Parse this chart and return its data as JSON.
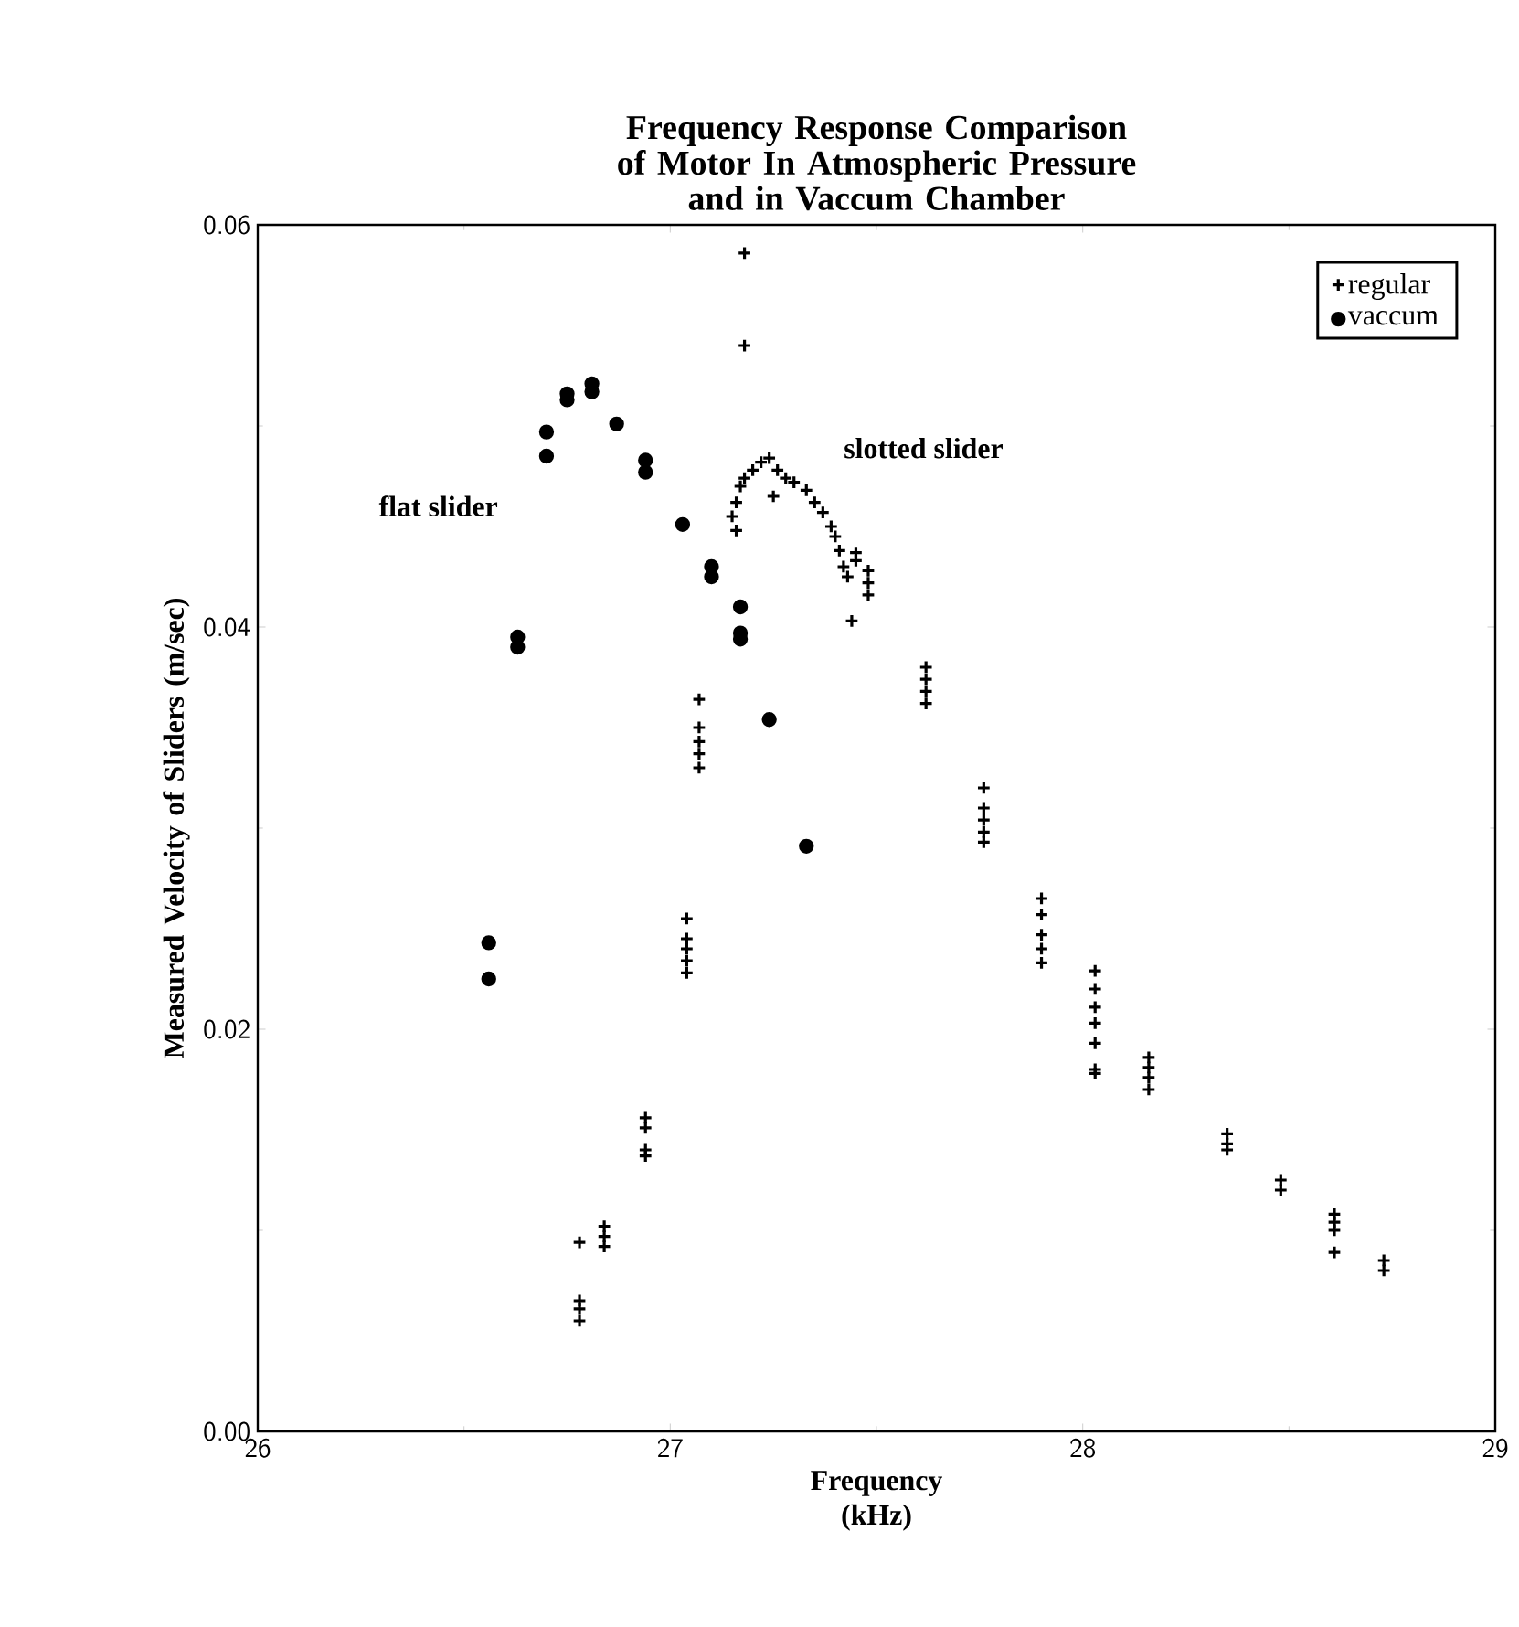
{
  "chart_data": {
    "type": "scatter",
    "title": "Frequency Response Comparison of Motor In Atmospheric Pressure and in Vaccum Chamber",
    "xlabel": "Frequency (kHz)",
    "ylabel": "Measured Velocity of Sliders (m/sec)",
    "xlim": [
      26,
      29
    ],
    "ylim": [
      0,
      0.06
    ],
    "xticks": [
      26,
      27,
      28,
      29
    ],
    "yticks": [
      {
        "value": 0,
        "label": "0.00"
      },
      {
        "value": 0.02,
        "label": "0.02"
      },
      {
        "value": 0.04,
        "label": "0.04"
      },
      {
        "value": 0.06,
        "label": "0.06"
      }
    ],
    "legend": "top right",
    "grid": false,
    "annotations": [
      "flat slider",
      "slotted slider"
    ],
    "series": [
      {
        "name": "regular",
        "color": "#000000",
        "marker": "cross",
        "x": [
          26.78,
          26.78,
          26.78,
          26.78,
          26.84,
          26.84,
          26.84,
          26.94,
          26.94,
          26.94,
          26.94,
          27.04,
          27.04,
          27.04,
          27.04,
          27.04,
          27.07,
          27.07,
          27.07,
          27.07,
          27.07,
          27.18,
          27.18,
          27.15,
          27.16,
          27.17,
          27.18,
          27.2,
          27.22,
          27.24,
          27.26,
          27.28,
          27.3,
          27.33,
          27.35,
          27.37,
          27.39,
          27.4,
          27.41,
          27.42,
          27.43,
          27.16,
          27.25,
          27.44,
          27.48,
          27.48,
          27.48,
          27.45,
          27.45,
          27.62,
          27.62,
          27.62,
          27.62,
          27.76,
          27.76,
          27.76,
          27.76,
          27.76,
          27.9,
          27.9,
          27.9,
          27.9,
          27.9,
          28.03,
          28.03,
          28.03,
          28.03,
          28.03,
          28.03,
          28.03,
          28.16,
          28.16,
          28.16,
          28.16,
          28.35,
          28.35,
          28.35,
          28.48,
          28.48,
          28.61,
          28.61,
          28.61,
          28.61,
          28.73,
          28.73
        ],
        "values": [
          0.0094,
          0.0065,
          0.0061,
          0.0055,
          0.0102,
          0.0097,
          0.0092,
          0.0156,
          0.0151,
          0.014,
          0.0137,
          0.0255,
          0.0245,
          0.024,
          0.0234,
          0.0228,
          0.0364,
          0.035,
          0.0343,
          0.0337,
          0.033,
          0.0586,
          0.054,
          0.0455,
          0.0462,
          0.047,
          0.0474,
          0.0478,
          0.0482,
          0.0484,
          0.0478,
          0.0474,
          0.0472,
          0.0468,
          0.0462,
          0.0457,
          0.045,
          0.0445,
          0.0438,
          0.043,
          0.0425,
          0.0448,
          0.0465,
          0.0403,
          0.0428,
          0.0422,
          0.0416,
          0.0437,
          0.0433,
          0.038,
          0.0374,
          0.0368,
          0.0362,
          0.032,
          0.031,
          0.0304,
          0.0298,
          0.0293,
          0.0265,
          0.0257,
          0.0247,
          0.024,
          0.0233,
          0.0229,
          0.022,
          0.0211,
          0.0203,
          0.0193,
          0.018,
          0.0178,
          0.0186,
          0.0181,
          0.0176,
          0.017,
          0.0148,
          0.0143,
          0.014,
          0.0125,
          0.012,
          0.0108,
          0.0104,
          0.01,
          0.0089,
          0.0085,
          0.008
        ]
      },
      {
        "name": "vaccum",
        "color": "#000000",
        "marker": "circle",
        "x": [
          26.56,
          26.56,
          26.63,
          26.63,
          26.7,
          26.7,
          26.75,
          26.75,
          26.81,
          26.81,
          26.87,
          26.94,
          26.94,
          27.03,
          27.1,
          27.1,
          27.17,
          27.17,
          27.17,
          27.24,
          27.33
        ],
        "values": [
          0.0243,
          0.0225,
          0.0395,
          0.039,
          0.0497,
          0.0485,
          0.0516,
          0.0513,
          0.0521,
          0.0517,
          0.0501,
          0.0483,
          0.0477,
          0.0451,
          0.043,
          0.0425,
          0.041,
          0.0397,
          0.0394,
          0.0354,
          0.0291
        ]
      }
    ]
  }
}
